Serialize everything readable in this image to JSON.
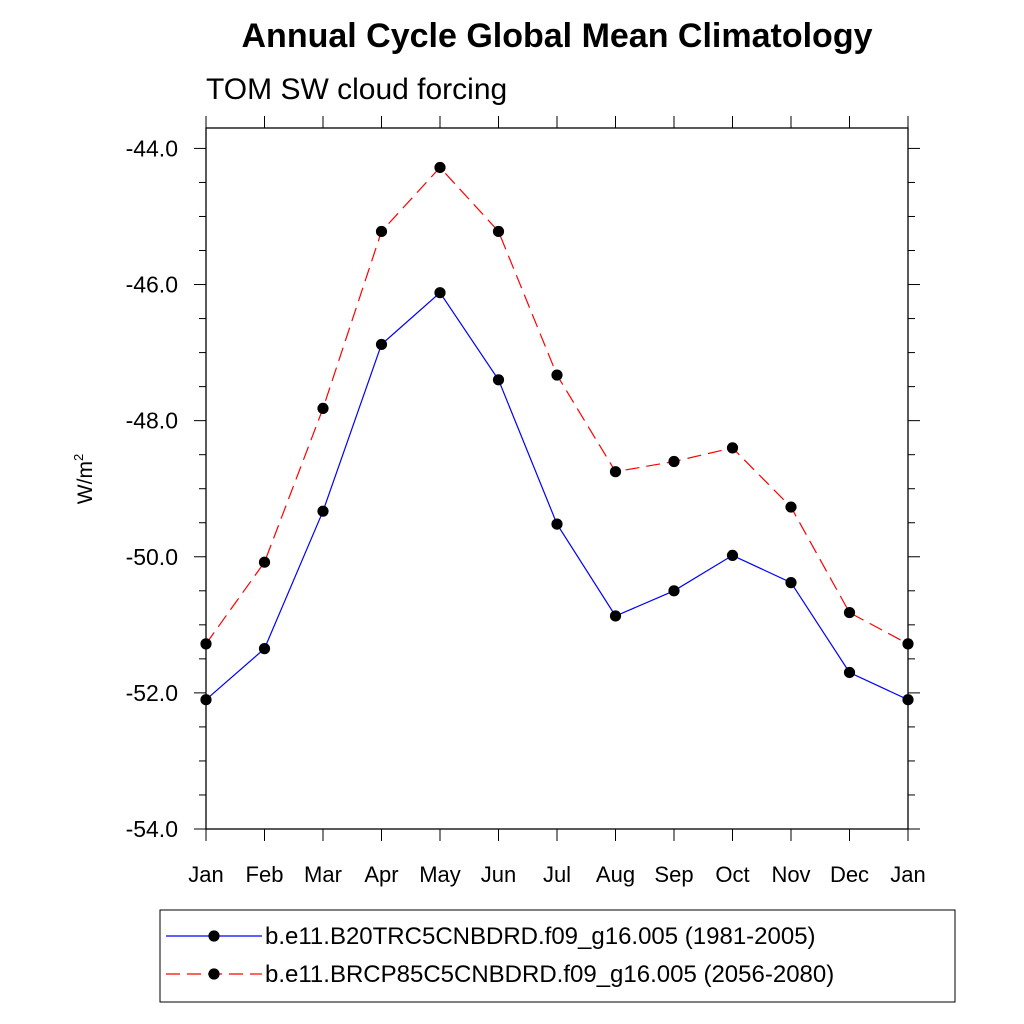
{
  "chart_data": {
    "type": "line",
    "title": "Annual Cycle Global Mean Climatology",
    "subtitle": "TOM SW cloud forcing",
    "ylabel_base": "W/m",
    "ylabel_sup": "2",
    "xlabel": "",
    "categories": [
      "Jan",
      "Feb",
      "Mar",
      "Apr",
      "May",
      "Jun",
      "Jul",
      "Aug",
      "Sep",
      "Oct",
      "Nov",
      "Dec",
      "Jan"
    ],
    "ylim": [
      -54.0,
      -43.7
    ],
    "yticks": [
      -44.0,
      -46.0,
      -48.0,
      -50.0,
      -52.0,
      -54.0
    ],
    "ytick_labels": [
      "-44.0",
      "-46.0",
      "-48.0",
      "-50.0",
      "-52.0",
      "-54.0"
    ],
    "grid": false,
    "legend_position": "bottom",
    "series": [
      {
        "name": "b.e11.B20TRC5CNBDRD.f09_g16.005 (1981-2005)",
        "color": "#0000ff",
        "dash": "solid",
        "values": [
          -52.1,
          -51.35,
          -49.33,
          -46.88,
          -46.12,
          -47.4,
          -49.52,
          -50.87,
          -50.5,
          -49.98,
          -50.38,
          -51.7,
          -52.1
        ]
      },
      {
        "name": "b.e11.BRCP85C5CNBDRD.f09_g16.005 (2056-2080)",
        "color": "#ff0000",
        "dash": "dashed",
        "values": [
          -51.28,
          -50.08,
          -47.82,
          -45.22,
          -44.28,
          -45.22,
          -47.33,
          -48.75,
          -48.6,
          -48.4,
          -49.27,
          -50.82,
          -51.28
        ]
      }
    ]
  }
}
